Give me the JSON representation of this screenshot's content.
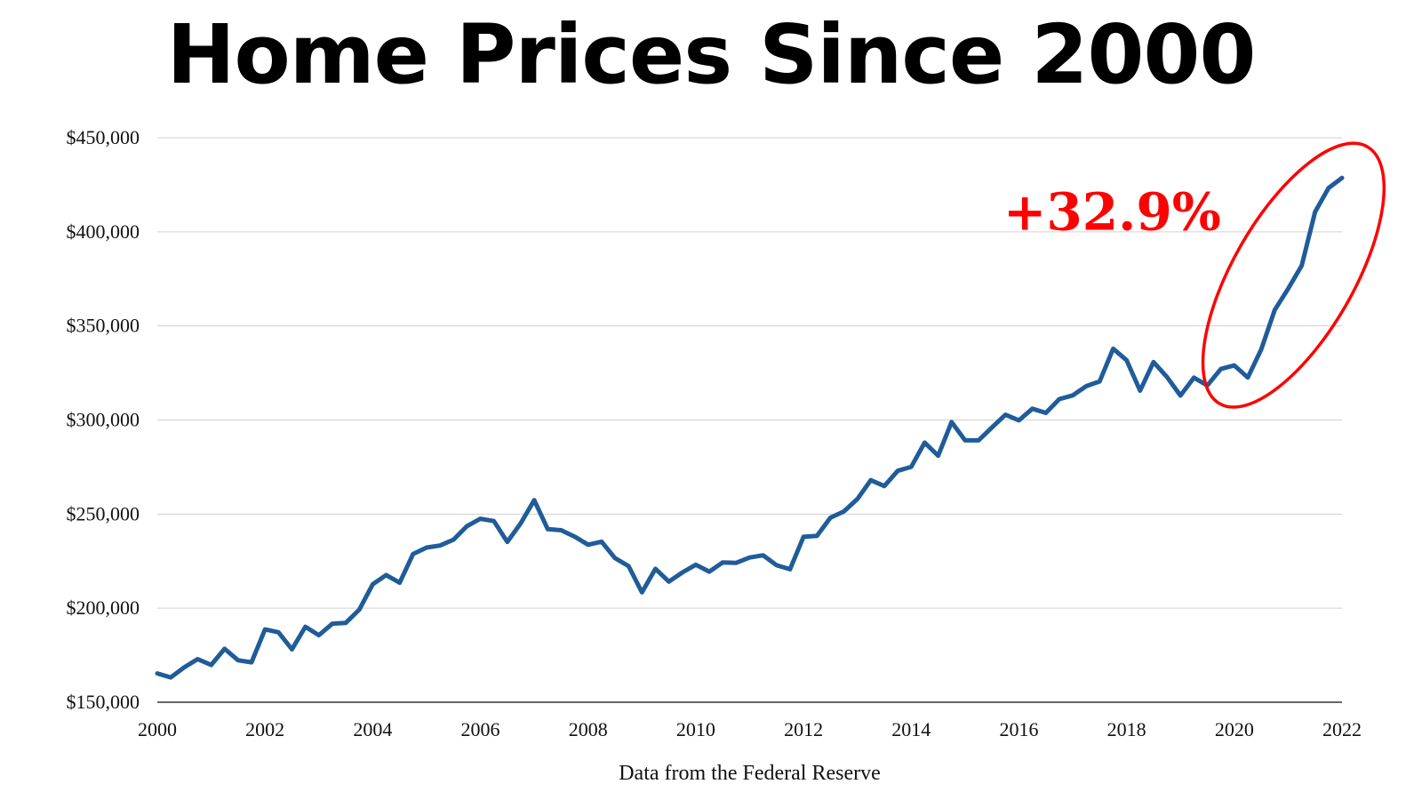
{
  "chart_data": {
    "type": "line",
    "title": "Home Prices Since 2000",
    "xlabel": "Data from the Federal Reserve",
    "ylabel": "",
    "xlim": [
      2000,
      2022
    ],
    "ylim": [
      150000,
      450000
    ],
    "grid": true,
    "y_ticks": [
      150000,
      200000,
      250000,
      300000,
      350000,
      400000,
      450000
    ],
    "y_tick_labels": [
      "$150,000",
      "$200,000",
      "$250,000",
      "$300,000",
      "$350,000",
      "$400,000",
      "$450,000"
    ],
    "x_ticks": [
      2000,
      2002,
      2004,
      2006,
      2008,
      2010,
      2012,
      2014,
      2016,
      2018,
      2020,
      2022
    ],
    "x_tick_labels": [
      "2000",
      "2002",
      "2004",
      "2006",
      "2008",
      "2010",
      "2012",
      "2014",
      "2016",
      "2018",
      "2020",
      "2022"
    ],
    "series": [
      {
        "color": "#1f5c99",
        "x": [
          2000.0,
          2000.25,
          2000.5,
          2000.75,
          2001.0,
          2001.25,
          2001.5,
          2001.75,
          2002.0,
          2002.25,
          2002.5,
          2002.75,
          2003.0,
          2003.25,
          2003.5,
          2003.75,
          2004.0,
          2004.25,
          2004.5,
          2004.75,
          2005.0,
          2005.25,
          2005.5,
          2005.75,
          2006.0,
          2006.25,
          2006.5,
          2006.75,
          2007.0,
          2007.25,
          2007.5,
          2007.75,
          2008.0,
          2008.25,
          2008.5,
          2008.75,
          2009.0,
          2009.25,
          2009.5,
          2009.75,
          2010.0,
          2010.25,
          2010.5,
          2010.75,
          2011.0,
          2011.25,
          2011.5,
          2011.75,
          2012.0,
          2012.25,
          2012.5,
          2012.75,
          2013.0,
          2013.25,
          2013.5,
          2013.75,
          2014.0,
          2014.25,
          2014.5,
          2014.75,
          2015.0,
          2015.25,
          2015.5,
          2015.75,
          2016.0,
          2016.25,
          2016.5,
          2016.75,
          2017.0,
          2017.25,
          2017.5,
          2017.75,
          2018.0,
          2018.25,
          2018.5,
          2018.75,
          2019.0,
          2019.25,
          2019.5,
          2019.75,
          2020.0,
          2020.25,
          2020.5,
          2020.75,
          2021.0,
          2021.25,
          2021.5,
          2021.75,
          2022.0
        ],
        "y": [
          165300,
          163200,
          168500,
          172900,
          169800,
          178400,
          172300,
          171200,
          188700,
          187200,
          178100,
          190100,
          185600,
          191700,
          192200,
          199200,
          212700,
          217600,
          213500,
          228800,
          232200,
          233300,
          236400,
          243600,
          247500,
          246300,
          235200,
          245200,
          257400,
          242000,
          241400,
          238000,
          233700,
          235300,
          226600,
          222400,
          208400,
          220900,
          214100,
          219000,
          223100,
          219400,
          224300,
          224100,
          226900,
          228100,
          222800,
          220700,
          237900,
          238400,
          248100,
          251400,
          258000,
          268000,
          264900,
          273000,
          275100,
          288000,
          281000,
          298900,
          289200,
          289200,
          296100,
          302800,
          299800,
          306000,
          303800,
          311100,
          313100,
          318000,
          320500,
          337900,
          331800,
          315600,
          330800,
          322800,
          313000,
          322500,
          318400,
          327100,
          329000,
          322600,
          337500,
          358500,
          369800,
          382000,
          410600,
          423300,
          428700
        ]
      }
    ],
    "annotations": [
      {
        "text": "+32.9%",
        "color": "#ff0000"
      }
    ]
  }
}
